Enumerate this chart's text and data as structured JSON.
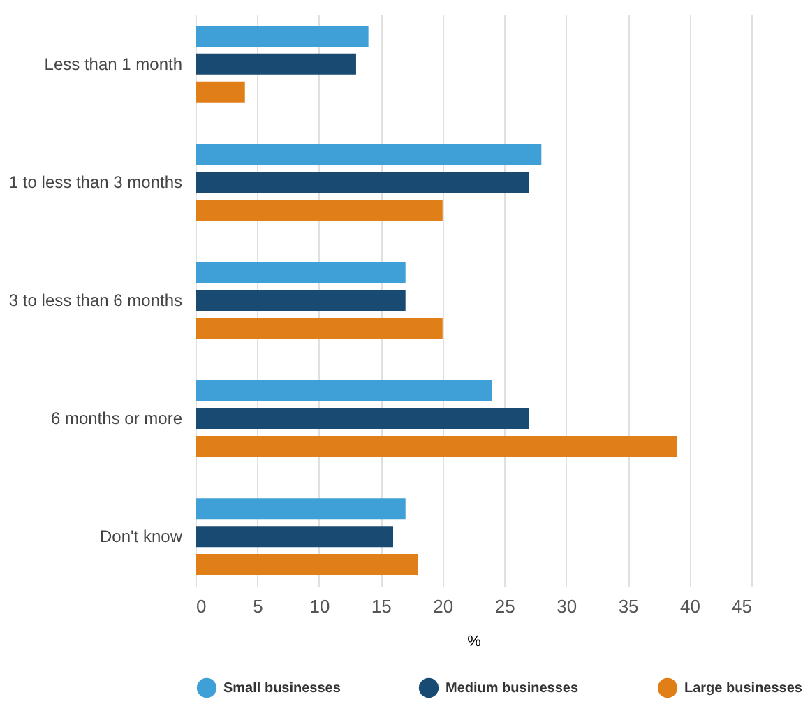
{
  "chart_data": {
    "type": "bar",
    "orientation": "horizontal",
    "xlabel": "%",
    "categories": [
      "Less than 1 month",
      "1 to less than 3 months",
      "3 to less than 6 months",
      "6 months or more",
      "Don't know"
    ],
    "series": [
      {
        "name": "Small businesses",
        "color": "#3fa0d8",
        "values": [
          14,
          28,
          17,
          24,
          17
        ]
      },
      {
        "name": "Medium businesses",
        "color": "#184a72",
        "values": [
          13,
          27,
          17,
          27,
          16
        ]
      },
      {
        "name": "Large businesses",
        "color": "#e07f18",
        "values": [
          4,
          20,
          20,
          39,
          18
        ]
      }
    ],
    "xlim": [
      0,
      45
    ],
    "xticks": [
      0,
      5,
      10,
      15,
      20,
      25,
      30,
      35,
      40,
      45
    ],
    "grid": true,
    "legend": "bottom"
  }
}
